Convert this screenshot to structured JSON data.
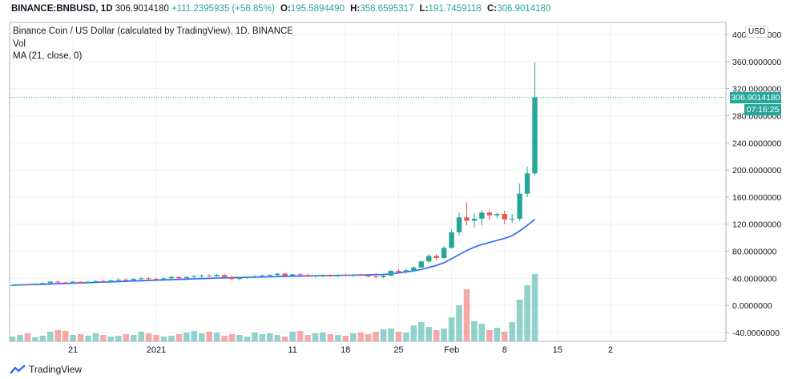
{
  "header": {
    "symbol": "BINANCE:BNBUSD, 1D",
    "last": "306.9014180",
    "change": "+111.2395935 (+56.85%)",
    "o_label": "O:",
    "o": "195.5894490",
    "h_label": "H:",
    "h": "358.6595317",
    "l_label": "L:",
    "l": "191.7459118",
    "c_label": "C:",
    "c": "306.9014180"
  },
  "legend": {
    "title": "Binance Coin / US Dollar (calculated by TradingView), 1D, BINANCE",
    "vol": "Vol",
    "ma": "MA (21, close, 0)"
  },
  "currency": "USD",
  "price_tag": "306.9014180",
  "countdown": "07:16:25",
  "footer": {
    "brand": "TradingView"
  },
  "colors": {
    "up": "#26a69a",
    "down": "#ef5350",
    "ma": "#2962ff",
    "grid": "#eef0f3"
  },
  "chart_data": {
    "type": "candlestick",
    "title": "Binance Coin / US Dollar (calculated by TradingView), 1D, BINANCE",
    "ylabel": "USD",
    "ylim": [
      -40,
      410
    ],
    "y_ticks": [
      "400.0000000",
      "360.0000000",
      "320.0000000",
      "280.0000000",
      "240.0000000",
      "200.0000000",
      "160.0000000",
      "120.0000000",
      "80.0000000",
      "40.0000000",
      "0.0000000",
      "-40.0000000"
    ],
    "y_tick_values": [
      400,
      360,
      320,
      280,
      240,
      200,
      160,
      120,
      80,
      40,
      0,
      -40
    ],
    "x_ticks": [
      {
        "label": "21",
        "index": 8
      },
      {
        "label": "2021",
        "index": 19
      },
      {
        "label": "11",
        "index": 37
      },
      {
        "label": "18",
        "index": 44
      },
      {
        "label": "25",
        "index": 51
      },
      {
        "label": "Feb",
        "index": 58
      },
      {
        "label": "8",
        "index": 65
      },
      {
        "label": "15",
        "index": 72
      },
      {
        "label": "2",
        "index": 79
      }
    ],
    "candles": [
      [
        30,
        31,
        29,
        30
      ],
      [
        30,
        32,
        29,
        31
      ],
      [
        31,
        31,
        29,
        30
      ],
      [
        30,
        33,
        30,
        32
      ],
      [
        32,
        34,
        31,
        33
      ],
      [
        33,
        36,
        32,
        35
      ],
      [
        35,
        37,
        33,
        34
      ],
      [
        34,
        35,
        32,
        33
      ],
      [
        33,
        36,
        32,
        35
      ],
      [
        35,
        35,
        32,
        33
      ],
      [
        33,
        36,
        32,
        35
      ],
      [
        35,
        37,
        33,
        36
      ],
      [
        36,
        38,
        34,
        35
      ],
      [
        35,
        38,
        34,
        37
      ],
      [
        37,
        40,
        36,
        38
      ],
      [
        38,
        40,
        36,
        37
      ],
      [
        37,
        40,
        36,
        39
      ],
      [
        39,
        42,
        37,
        40
      ],
      [
        40,
        42,
        38,
        39
      ],
      [
        39,
        41,
        37,
        38
      ],
      [
        38,
        41,
        37,
        40
      ],
      [
        40,
        44,
        39,
        42
      ],
      [
        42,
        43,
        39,
        40
      ],
      [
        40,
        43,
        39,
        42
      ],
      [
        42,
        45,
        40,
        43
      ],
      [
        43,
        46,
        41,
        44
      ],
      [
        44,
        46,
        42,
        43
      ],
      [
        43,
        47,
        42,
        45
      ],
      [
        45,
        47,
        42,
        42
      ],
      [
        42,
        44,
        37,
        39
      ],
      [
        39,
        42,
        37,
        41
      ],
      [
        41,
        43,
        39,
        42
      ],
      [
        42,
        45,
        40,
        43
      ],
      [
        43,
        46,
        41,
        44
      ],
      [
        44,
        46,
        42,
        45
      ],
      [
        45,
        48,
        43,
        47
      ],
      [
        47,
        48,
        43,
        44
      ],
      [
        44,
        47,
        42,
        46
      ],
      [
        46,
        48,
        44,
        45
      ],
      [
        45,
        47,
        42,
        43
      ],
      [
        43,
        45,
        41,
        44
      ],
      [
        44,
        46,
        42,
        45
      ],
      [
        45,
        46,
        42,
        43
      ],
      [
        43,
        46,
        42,
        45
      ],
      [
        45,
        47,
        43,
        44
      ],
      [
        44,
        46,
        42,
        45
      ],
      [
        45,
        47,
        43,
        44
      ],
      [
        44,
        46,
        41,
        43
      ],
      [
        43,
        48,
        40,
        42
      ],
      [
        42,
        47,
        40,
        44
      ],
      [
        44,
        52,
        43,
        51
      ],
      [
        51,
        54,
        47,
        49
      ],
      [
        49,
        54,
        47,
        52
      ],
      [
        52,
        58,
        50,
        56
      ],
      [
        56,
        66,
        55,
        65
      ],
      [
        65,
        76,
        63,
        73
      ],
      [
        73,
        76,
        67,
        70
      ],
      [
        70,
        88,
        69,
        85
      ],
      [
        85,
        112,
        84,
        108
      ],
      [
        108,
        137,
        103,
        130
      ],
      [
        130,
        152,
        118,
        125
      ],
      [
        125,
        136,
        115,
        128
      ],
      [
        128,
        141,
        118,
        137
      ],
      [
        137,
        140,
        126,
        133
      ],
      [
        133,
        137,
        129,
        135
      ],
      [
        135,
        140,
        120,
        127
      ],
      [
        127,
        135,
        122,
        128
      ],
      [
        128,
        180,
        125,
        165
      ],
      [
        165,
        205,
        160,
        195
      ],
      [
        195,
        359,
        192,
        307
      ]
    ],
    "ma": [
      30,
      30.3,
      30.6,
      30.9,
      31.2,
      31.6,
      32,
      32.4,
      32.8,
      33.2,
      33.6,
      34,
      34.4,
      34.8,
      35.2,
      35.6,
      36,
      36.4,
      36.8,
      37.2,
      37.6,
      38,
      38.4,
      38.8,
      39.2,
      39.6,
      40,
      40.4,
      40.7,
      41,
      41.2,
      41.5,
      41.8,
      42,
      42.3,
      42.6,
      42.9,
      43.1,
      43.3,
      43.5,
      43.7,
      43.9,
      44.1,
      44.3,
      44.5,
      44.7,
      44.9,
      45.1,
      45.4,
      45.7,
      46.5,
      48,
      49.5,
      51,
      53,
      56,
      59,
      63,
      69,
      75,
      81,
      86,
      90,
      93,
      96,
      99,
      103,
      110,
      118,
      127
    ],
    "volume": [
      6,
      8,
      10,
      5,
      7,
      12,
      14,
      13,
      8,
      9,
      7,
      10,
      8,
      6,
      7,
      9,
      8,
      12,
      10,
      8,
      6,
      7,
      9,
      11,
      13,
      10,
      12,
      11,
      7,
      9,
      8,
      6,
      11,
      9,
      10,
      8,
      6,
      12,
      13,
      8,
      10,
      11,
      9,
      8,
      7,
      10,
      11,
      9,
      12,
      15,
      16,
      12,
      11,
      20,
      24,
      18,
      14,
      16,
      30,
      45,
      65,
      25,
      22,
      14,
      17,
      12,
      24,
      52,
      70,
      84
    ],
    "volume_unit": "relative"
  }
}
